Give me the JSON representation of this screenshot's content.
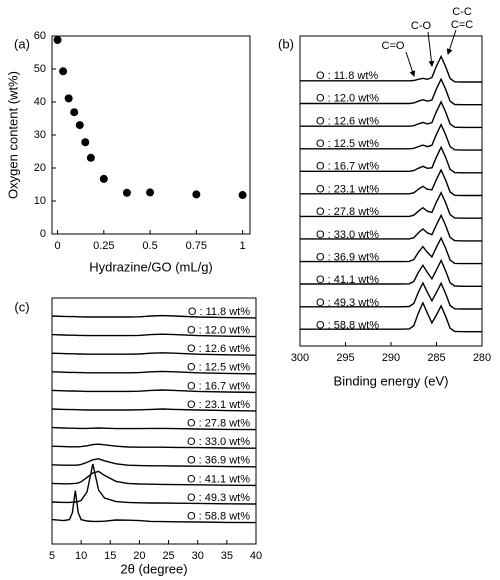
{
  "chart_data": [
    {
      "type": "scatter",
      "panel": "(a)",
      "xlabel": "Hydrazine/GO (mL/g)",
      "ylabel": "Oxygen content (wt%)",
      "x": [
        0,
        0.03,
        0.06,
        0.09,
        0.12,
        0.15,
        0.18,
        0.25,
        0.375,
        0.5,
        0.75,
        1
      ],
      "y": [
        58.8,
        49.3,
        41.1,
        36.9,
        33.0,
        27.8,
        23.1,
        16.7,
        12.5,
        12.6,
        12.0,
        11.8
      ],
      "color": "#000000",
      "xlim": [
        -0.03,
        1.04
      ],
      "ylim": [
        0,
        60
      ],
      "xticks": [
        0,
        0.25,
        0.5,
        0.75,
        1
      ],
      "yticks": [
        0,
        10,
        20,
        30,
        40,
        50,
        60
      ]
    },
    {
      "type": "line",
      "stacked": true,
      "panel": "(b)",
      "xlabel": "Binding energy (eV)",
      "annotations": [
        "C=O",
        "C-O",
        "C-C",
        "C=C"
      ],
      "x": [
        300,
        295,
        291,
        289,
        288,
        287.5,
        287,
        286.5,
        286,
        285.5,
        285,
        284.5,
        284,
        283.5,
        283,
        282,
        280
      ],
      "xlim": [
        300,
        280
      ],
      "xticks": [
        300,
        295,
        290,
        285,
        280
      ],
      "color": "#000000",
      "series": [
        {
          "name": "O : 11.8 wt%",
          "values": [
            0.05,
            0.05,
            0.05,
            0.05,
            0.05,
            0.06,
            0.11,
            0.15,
            0.11,
            0.18,
            0.64,
            1.02,
            0.62,
            0.14,
            0.01,
            0,
            0
          ]
        },
        {
          "name": "O : 12.0 wt%",
          "values": [
            0.05,
            0.05,
            0.05,
            0.05,
            0.05,
            0.07,
            0.14,
            0.2,
            0.14,
            0.19,
            0.64,
            1.02,
            0.62,
            0.14,
            0.01,
            0,
            0
          ]
        },
        {
          "name": "O : 12.6 wt%",
          "values": [
            0.05,
            0.05,
            0.05,
            0.05,
            0.05,
            0.07,
            0.14,
            0.2,
            0.14,
            0.19,
            0.64,
            1.02,
            0.62,
            0.14,
            0.01,
            0,
            0
          ]
        },
        {
          "name": "O : 12.5 wt%",
          "values": [
            0.05,
            0.05,
            0.05,
            0.05,
            0.05,
            0.07,
            0.14,
            0.2,
            0.14,
            0.19,
            0.64,
            1.02,
            0.62,
            0.14,
            0.01,
            0,
            0
          ]
        },
        {
          "name": "O : 16.7 wt%",
          "values": [
            0.06,
            0.06,
            0.06,
            0.06,
            0.06,
            0.09,
            0.18,
            0.26,
            0.18,
            0.2,
            0.64,
            1.02,
            0.62,
            0.14,
            0.01,
            0,
            0
          ]
        },
        {
          "name": "O : 23.1 wt%",
          "values": [
            0.07,
            0.07,
            0.07,
            0.07,
            0.07,
            0.11,
            0.25,
            0.37,
            0.25,
            0.23,
            0.65,
            1.02,
            0.62,
            0.14,
            0.01,
            0,
            0
          ]
        },
        {
          "name": "O : 27.8 wt%",
          "values": [
            0.07,
            0.07,
            0.07,
            0.07,
            0.07,
            0.12,
            0.28,
            0.42,
            0.28,
            0.23,
            0.65,
            1.02,
            0.62,
            0.14,
            0.01,
            0,
            0
          ]
        },
        {
          "name": "O : 33.0 wt%",
          "values": [
            0.08,
            0.08,
            0.08,
            0.08,
            0.08,
            0.13,
            0.32,
            0.48,
            0.32,
            0.25,
            0.65,
            1.02,
            0.62,
            0.14,
            0.01,
            0,
            0
          ]
        },
        {
          "name": "O : 36.9 wt%",
          "values": [
            0.08,
            0.08,
            0.08,
            0.08,
            0.09,
            0.16,
            0.45,
            0.68,
            0.45,
            0.27,
            0.66,
            1.02,
            0.62,
            0.14,
            0.01,
            0,
            0
          ]
        },
        {
          "name": "O : 41.1 wt%",
          "values": [
            0.09,
            0.09,
            0.09,
            0.09,
            0.1,
            0.19,
            0.55,
            0.84,
            0.55,
            0.3,
            0.66,
            1.03,
            0.62,
            0.14,
            0.01,
            0,
            0
          ]
        },
        {
          "name": "O : 49.3 wt%",
          "values": [
            0.09,
            0.09,
            0.09,
            0.09,
            0.1,
            0.22,
            0.67,
            1.04,
            0.67,
            0.33,
            0.67,
            1.03,
            0.62,
            0.14,
            0.01,
            0,
            0
          ]
        },
        {
          "name": "O : 58.8 wt%",
          "values": [
            0.1,
            0.1,
            0.1,
            0.1,
            0.11,
            0.24,
            0.74,
            1.15,
            0.74,
            0.35,
            0.67,
            1.03,
            0.62,
            0.14,
            0.01,
            0,
            0
          ]
        }
      ]
    },
    {
      "type": "line",
      "stacked": true,
      "panel": "(c)",
      "xlabel": "2θ (degree)",
      "x": [
        5,
        7,
        8,
        8.5,
        9,
        9.5,
        10,
        11,
        12,
        13,
        14,
        16,
        18,
        20,
        22,
        24,
        26,
        30,
        35,
        40
      ],
      "xlim": [
        5,
        40
      ],
      "xticks": [
        5,
        10,
        15,
        20,
        25,
        30,
        35,
        40
      ],
      "color": "#000000",
      "series": [
        {
          "name": "O : 11.8 wt%",
          "values": [
            0.1,
            0.08,
            0.07,
            0.07,
            0.07,
            0.06,
            0.06,
            0.05,
            0.05,
            0.05,
            0.05,
            0.05,
            0.05,
            0.06,
            0.1,
            0.12,
            0.1,
            0.05,
            0.02,
            0
          ]
        },
        {
          "name": "O : 12.0 wt%",
          "values": [
            0.1,
            0.08,
            0.07,
            0.07,
            0.07,
            0.06,
            0.06,
            0.05,
            0.05,
            0.05,
            0.05,
            0.05,
            0.05,
            0.06,
            0.1,
            0.12,
            0.1,
            0.05,
            0.02,
            0
          ]
        },
        {
          "name": "O : 12.6 wt%",
          "values": [
            0.1,
            0.08,
            0.07,
            0.07,
            0.07,
            0.06,
            0.06,
            0.05,
            0.05,
            0.05,
            0.05,
            0.05,
            0.05,
            0.06,
            0.1,
            0.12,
            0.1,
            0.05,
            0.02,
            0
          ]
        },
        {
          "name": "O : 12.5 wt%",
          "values": [
            0.1,
            0.08,
            0.07,
            0.07,
            0.07,
            0.06,
            0.06,
            0.05,
            0.05,
            0.05,
            0.05,
            0.05,
            0.05,
            0.06,
            0.1,
            0.12,
            0.1,
            0.05,
            0.02,
            0
          ]
        },
        {
          "name": "O : 16.7 wt%",
          "values": [
            0.1,
            0.08,
            0.07,
            0.07,
            0.07,
            0.06,
            0.06,
            0.05,
            0.05,
            0.05,
            0.05,
            0.05,
            0.05,
            0.06,
            0.1,
            0.12,
            0.1,
            0.05,
            0.02,
            0
          ]
        },
        {
          "name": "O : 23.1 wt%",
          "values": [
            0.1,
            0.08,
            0.07,
            0.07,
            0.07,
            0.06,
            0.06,
            0.05,
            0.05,
            0.05,
            0.05,
            0.05,
            0.05,
            0.06,
            0.08,
            0.1,
            0.08,
            0.05,
            0.02,
            0
          ]
        },
        {
          "name": "O : 27.8 wt%",
          "values": [
            0.1,
            0.08,
            0.07,
            0.07,
            0.07,
            0.06,
            0.06,
            0.06,
            0.07,
            0.08,
            0.07,
            0.05,
            0.05,
            0.05,
            0.06,
            0.06,
            0.05,
            0.03,
            0.01,
            0
          ]
        },
        {
          "name": "O : 33.0 wt%",
          "values": [
            0.1,
            0.08,
            0.07,
            0.07,
            0.07,
            0.07,
            0.08,
            0.12,
            0.18,
            0.2,
            0.17,
            0.1,
            0.06,
            0.05,
            0.05,
            0.05,
            0.04,
            0.03,
            0.01,
            0
          ]
        },
        {
          "name": "O : 36.9 wt%",
          "values": [
            0.1,
            0.08,
            0.08,
            0.08,
            0.08,
            0.09,
            0.12,
            0.22,
            0.35,
            0.4,
            0.3,
            0.15,
            0.08,
            0.06,
            0.05,
            0.05,
            0.04,
            0.03,
            0.01,
            0
          ]
        },
        {
          "name": "O : 41.1 wt%",
          "values": [
            0.1,
            0.08,
            0.08,
            0.09,
            0.1,
            0.12,
            0.18,
            0.4,
            0.62,
            0.7,
            0.5,
            0.2,
            0.1,
            0.07,
            0.06,
            0.05,
            0.04,
            0.03,
            0.01,
            0
          ]
        },
        {
          "name": "O : 49.3 wt%",
          "values": [
            0.1,
            0.08,
            0.08,
            0.09,
            0.1,
            0.12,
            0.18,
            0.6,
            2.0,
            0.7,
            0.3,
            0.12,
            0.08,
            0.06,
            0.05,
            0.05,
            0.04,
            0.03,
            0.01,
            0
          ]
        },
        {
          "name": "O : 58.8 wt%",
          "values": [
            0.15,
            0.1,
            0.15,
            0.5,
            1.6,
            0.5,
            0.15,
            0.08,
            0.06,
            0.06,
            0.07,
            0.13,
            0.12,
            0.1,
            0.06,
            0.05,
            0.04,
            0.03,
            0.01,
            0
          ]
        }
      ]
    }
  ]
}
